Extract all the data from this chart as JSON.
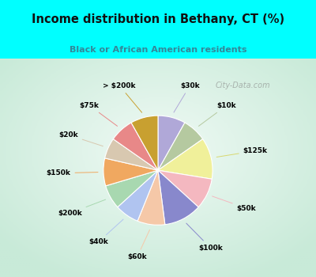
{
  "title": "Income distribution in Bethany, CT (%)",
  "subtitle": "Black or African American residents",
  "watermark": "City-Data.com",
  "cyan_bg": "#00FFFF",
  "chart_bg_outer": "#c8ead8",
  "chart_bg_inner": "#f0faf5",
  "slices": [
    {
      "label": "$30k",
      "value": 8,
      "color": "#b0a8d8",
      "line_color": "#b0a8d8"
    },
    {
      "label": "$10k",
      "value": 7,
      "color": "#b5c9a0",
      "line_color": "#b5c9a0"
    },
    {
      "label": "$125k",
      "value": 12,
      "color": "#f0f09a",
      "line_color": "#d8d870"
    },
    {
      "label": "$50k",
      "value": 9,
      "color": "#f4b8c0",
      "line_color": "#f4b8c0"
    },
    {
      "label": "$100k",
      "value": 11,
      "color": "#8888cc",
      "line_color": "#8888cc"
    },
    {
      "label": "$60k",
      "value": 8,
      "color": "#f5c8a8",
      "line_color": "#f5c8a8"
    },
    {
      "label": "$40k",
      "value": 7,
      "color": "#b0c4f0",
      "line_color": "#b0c4f0"
    },
    {
      "label": "$200k",
      "value": 7,
      "color": "#a8d8b0",
      "line_color": "#a8d8b0"
    },
    {
      "label": "$150k",
      "value": 8,
      "color": "#f0a860",
      "line_color": "#f0a860"
    },
    {
      "label": "$20k",
      "value": 6,
      "color": "#d8c8b0",
      "line_color": "#d8c8b0"
    },
    {
      "label": "$75k",
      "value": 7,
      "color": "#e88888",
      "line_color": "#e88888"
    },
    {
      "label": "> $200k",
      "value": 8,
      "color": "#c8a030",
      "line_color": "#c8a030"
    }
  ]
}
